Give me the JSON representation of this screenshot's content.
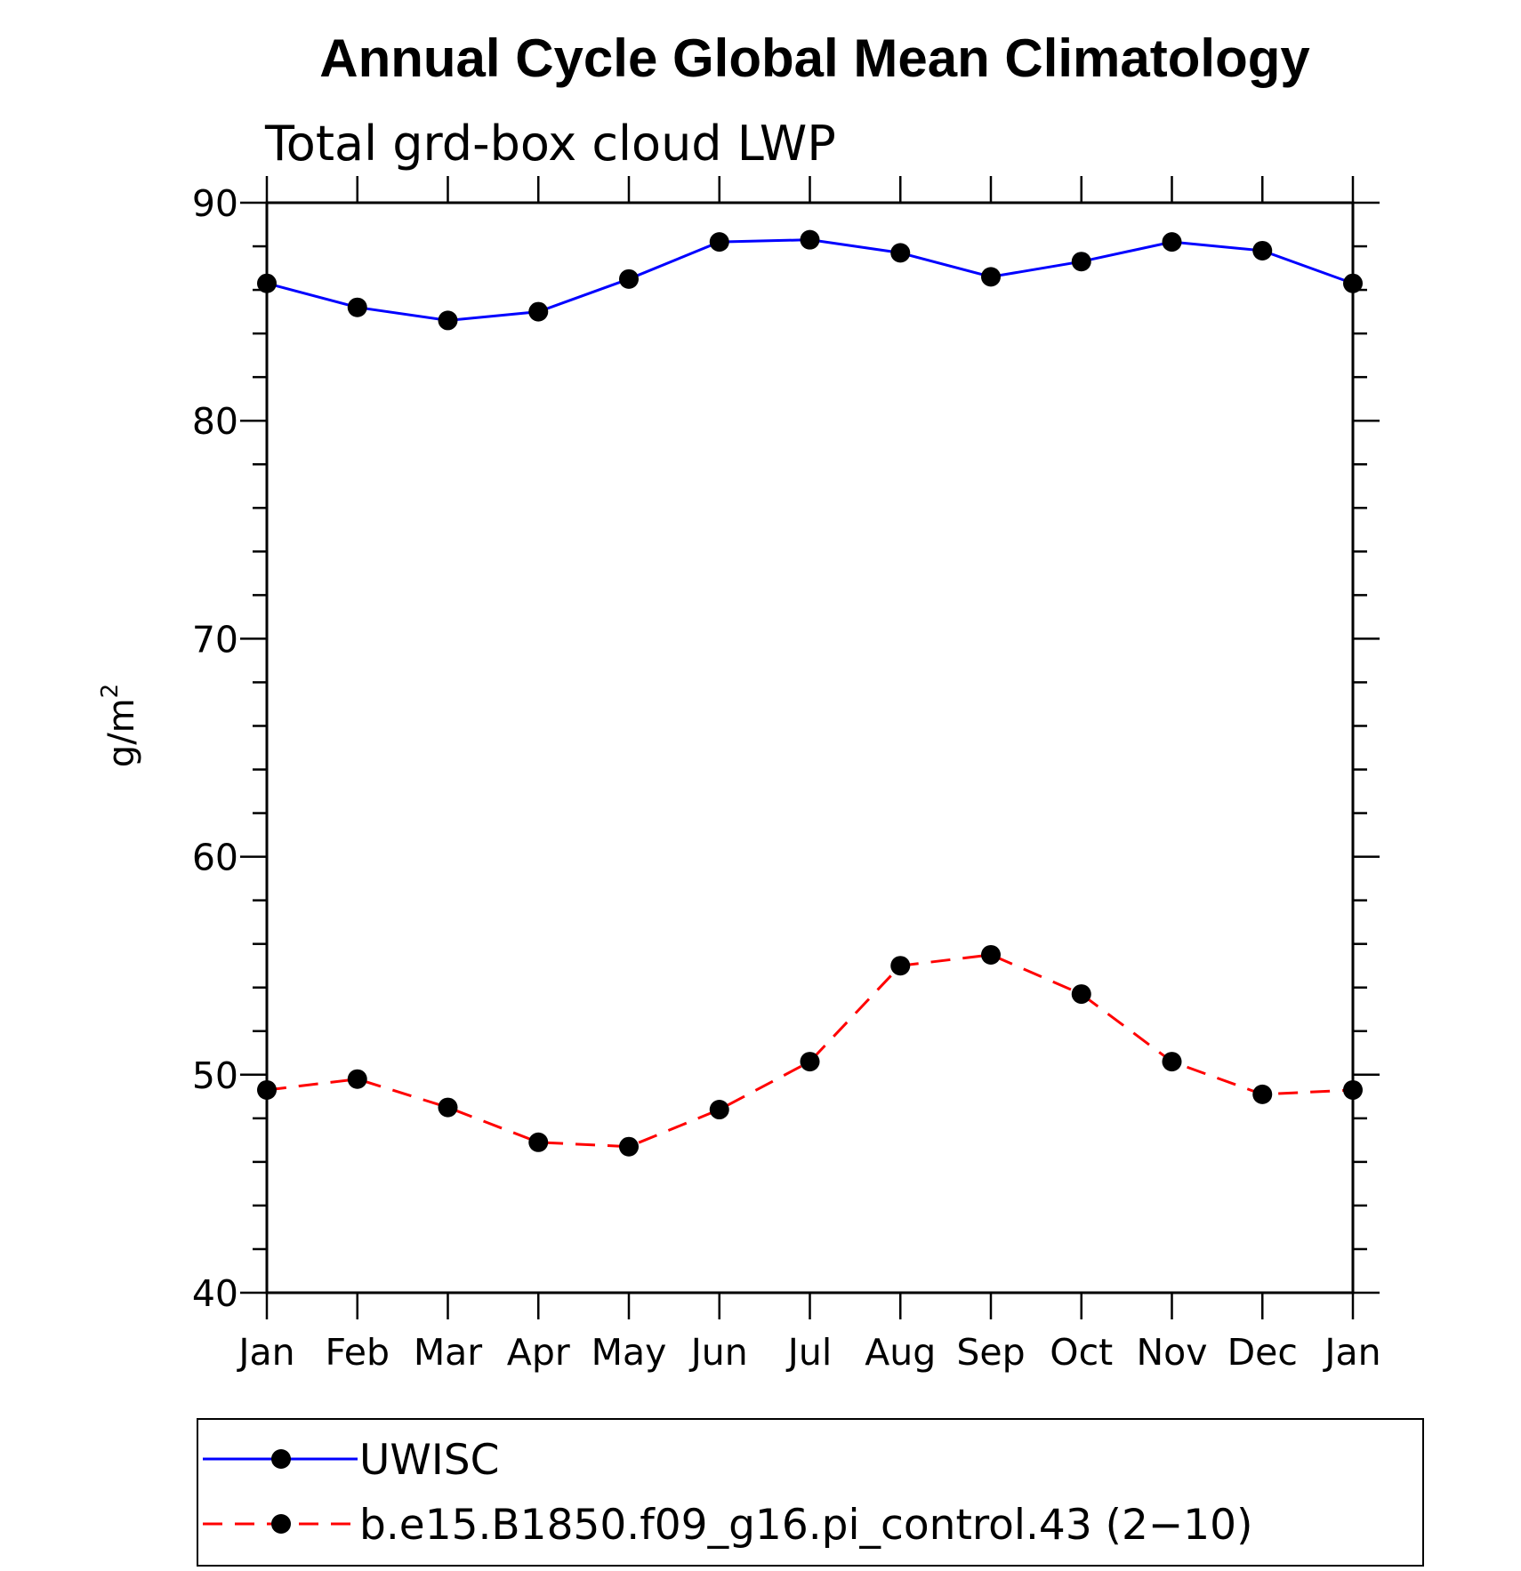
{
  "chart_data": {
    "type": "line",
    "title": "Annual Cycle Global Mean Climatology",
    "subtitle": "Total grd-box cloud LWP",
    "ylabel_base": "g/m",
    "ylabel_sup": "2",
    "xlabel": "",
    "categories": [
      "Jan",
      "Feb",
      "Mar",
      "Apr",
      "May",
      "Jun",
      "Jul",
      "Aug",
      "Sep",
      "Oct",
      "Nov",
      "Dec",
      "Jan"
    ],
    "ylim": [
      40,
      90
    ],
    "yticks": [
      "40",
      "50",
      "60",
      "70",
      "80",
      "90"
    ],
    "grid": false,
    "legend_position": "bottom",
    "series": [
      {
        "name": "UWISC",
        "color": "#0000ff",
        "style": "solid",
        "marker": "filled-circle",
        "values": [
          86.3,
          85.2,
          84.6,
          85.0,
          86.5,
          88.2,
          88.3,
          87.7,
          86.6,
          87.3,
          88.2,
          87.8,
          86.3
        ]
      },
      {
        "name": "b.e15.B1850.f09_g16.pi_control.43 (2−10)",
        "color": "#ff0000",
        "style": "dashed",
        "marker": "filled-circle",
        "values": [
          49.3,
          49.8,
          48.5,
          46.9,
          46.7,
          48.4,
          50.6,
          55.0,
          55.5,
          53.7,
          50.6,
          49.1,
          49.3
        ]
      }
    ]
  }
}
